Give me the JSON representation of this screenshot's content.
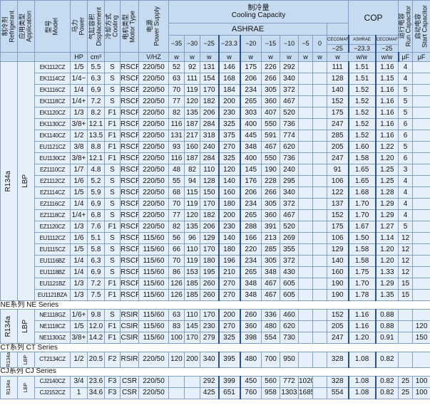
{
  "header": {
    "left": [
      {
        "zh": "制冷剂",
        "en": "Refrigerant"
      },
      {
        "zh": "应用类型",
        "en": "Application"
      },
      {
        "zh": "型号",
        "en": "Model"
      },
      {
        "zh": "马力",
        "en": "Power"
      },
      {
        "zh": "气缸容积",
        "en": "Displacement"
      },
      {
        "zh": "冷却方式",
        "en": "Cooling"
      },
      {
        "zh": "电机类型",
        "en": "Motor Type"
      },
      {
        "zh": "电源",
        "en": "Power Supply"
      }
    ],
    "capacity": {
      "zh": "制冷量",
      "en": "Cooling Capacity"
    },
    "cop": "COP",
    "run_capacitor": {
      "zh": "运行电容",
      "en": "Run Capacitor"
    },
    "start_capacitor": {
      "zh": "启动电容",
      "en": "Start Capacitor"
    },
    "ashrae": "ASHRAE",
    "temps": [
      "−35",
      "−30",
      "−25",
      "−23.3",
      "−20",
      "−15",
      "−10",
      "−5",
      "0"
    ],
    "sub_labels": [
      "CECOMAF",
      "ASHRAE",
      "CECOMAF"
    ],
    "sub_temps": [
      "−25",
      "−23.3",
      "−25"
    ],
    "units": [
      null,
      null,
      null,
      "HP",
      "cm³",
      null,
      null,
      "V/HZ",
      "w",
      "w",
      "w",
      "w",
      "w",
      "w",
      "w",
      "w",
      "w",
      "w",
      "w/w",
      "w/w",
      "μF",
      "μF"
    ]
  },
  "sections": [
    {
      "refrigerant": "R134a",
      "application": "LBP",
      "rows": [
        [
          "EK1112CZ",
          "1/5",
          "5.5",
          "S",
          "RSCR",
          "220/50",
          "52",
          "92",
          "131",
          "146",
          "175",
          "226",
          "292",
          null,
          null,
          "111",
          "1.51",
          "1.16",
          "4",
          null
        ],
        [
          "EK1114CZ",
          "1/4−",
          "6.3",
          "S",
          "RSCR",
          "220/50",
          "63",
          "111",
          "154",
          "168",
          "206",
          "266",
          "340",
          null,
          null,
          "128",
          "1.51",
          "1.15",
          "4",
          null
        ],
        [
          "EK1116CZ",
          "1/4",
          "6.9",
          "S",
          "RSCR",
          "220/50",
          "70",
          "119",
          "170",
          "184",
          "234",
          "305",
          "372",
          null,
          null,
          "140",
          "1.52",
          "1.16",
          "5",
          null
        ],
        [
          "EK1118CZ",
          "1/4+",
          "7.2",
          "S",
          "RSCR",
          "220/50",
          "77",
          "120",
          "182",
          "200",
          "265",
          "360",
          "467",
          null,
          null,
          "152",
          "1.52",
          "1.16",
          "5",
          null
        ],
        [
          "EK1120CZ",
          "1/3",
          "8.2",
          "F1",
          "RSCR",
          "220/50",
          "82",
          "135",
          "206",
          "230",
          "303",
          "407",
          "520",
          null,
          null,
          "175",
          "1.52",
          "1.16",
          "5",
          null
        ],
        [
          "EK1130CZ",
          "3/8+",
          "12.1",
          "F1",
          "RSCR",
          "220/50",
          "116",
          "187",
          "284",
          "325",
          "400",
          "550",
          "736",
          null,
          null,
          "247",
          "1.52",
          "1.16",
          "6",
          null
        ],
        [
          "EK1140CZ",
          "1/2",
          "13.5",
          "F1",
          "RSCR",
          "220/50",
          "131",
          "217",
          "318",
          "375",
          "445",
          "591",
          "774",
          null,
          null,
          "285",
          "1.52",
          "1.16",
          "6",
          null
        ],
        [
          "EU1121CZ",
          "3/8",
          "8.8",
          "F1",
          "RSCR",
          "220/50",
          "93",
          "160",
          "240",
          "270",
          "348",
          "467",
          "620",
          null,
          null,
          "205",
          "1.60",
          "1.22",
          "5",
          null
        ],
        [
          "EU1130CZ",
          "3/8+",
          "12.1",
          "F1",
          "RSCR",
          "220/50",
          "116",
          "187",
          "284",
          "325",
          "400",
          "550",
          "736",
          null,
          null,
          "247",
          "1.58",
          "1.20",
          "6",
          null
        ],
        [
          "EZ1110CZ",
          "1/7",
          "4.8",
          "S",
          "RSCR",
          "220/50",
          "48",
          "82",
          "110",
          "120",
          "145",
          "190",
          "240",
          null,
          null,
          "91",
          "1.65",
          "1.25",
          "3",
          null
        ],
        [
          "EZ1112CZ",
          "1/6",
          "5.2",
          "S",
          "RSCR",
          "220/50",
          "55",
          "94",
          "128",
          "140",
          "176",
          "228",
          "295",
          null,
          null,
          "106",
          "1.65",
          "1.25",
          "4",
          null
        ],
        [
          "EZ1114CZ",
          "1/5",
          "5.9",
          "S",
          "RSCR",
          "220/50",
          "68",
          "115",
          "150",
          "160",
          "206",
          "266",
          "340",
          null,
          null,
          "122",
          "1.68",
          "1.28",
          "4",
          null
        ],
        [
          "EZ1116CZ",
          "1/4",
          "6.9",
          "S",
          "RSCR",
          "220/50",
          "70",
          "119",
          "170",
          "180",
          "234",
          "305",
          "372",
          null,
          null,
          "137",
          "1.70",
          "1.29",
          "4",
          null
        ],
        [
          "EZ1118CZ",
          "1/4+",
          "6.8",
          "S",
          "RSCR",
          "220/50",
          "77",
          "120",
          "182",
          "200",
          "265",
          "360",
          "467",
          null,
          null,
          "152",
          "1.70",
          "1.29",
          "4",
          null
        ],
        [
          "EZ1120CZ",
          "1/3",
          "7.6",
          "F1",
          "RSCR",
          "220/50",
          "82",
          "135",
          "206",
          "230",
          "288",
          "391",
          "520",
          null,
          null,
          "175",
          "1.67",
          "1.27",
          "5",
          null
        ],
        [
          "EU1112CZ",
          "1/6",
          "5.1",
          "S",
          "RSCR",
          "115/60",
          "56",
          "96",
          "129",
          "140",
          "166",
          "213",
          "269",
          null,
          null,
          "106",
          "1.50",
          "1.14",
          "12",
          null
        ],
        [
          "EU1115CZ",
          "1/5",
          "5.8",
          "S",
          "RSCR",
          "115/60",
          "66",
          "110",
          "170",
          "180",
          "220",
          "285",
          "355",
          null,
          null,
          "129",
          "1.58",
          "1.20",
          "12",
          null
        ],
        [
          "EU1116BZ",
          "1/4",
          "6.3",
          "S",
          "RSCR",
          "115/60",
          "70",
          "119",
          "180",
          "196",
          "234",
          "305",
          "372",
          null,
          null,
          "140",
          "1.58",
          "1.20",
          "12",
          null
        ],
        [
          "EU1118BZ",
          "1/4",
          "6.9",
          "S",
          "RSCR",
          "115/60",
          "86",
          "153",
          "195",
          "210",
          "265",
          "348",
          "430",
          null,
          null,
          "160",
          "1.75",
          "1.33",
          "12",
          null
        ],
        [
          "EU1121BZ",
          "1/3",
          "7.2",
          "F1",
          "RSCR",
          "115/60",
          "126",
          "185",
          "260",
          "270",
          "348",
          "467",
          "605",
          null,
          null,
          "190",
          "1.70",
          "1.29",
          "15",
          null
        ],
        [
          "EU1121BZA",
          "1/3",
          "7.5",
          "F1",
          "RSCR",
          "115/60",
          "126",
          "185",
          "260",
          "270",
          "348",
          "467",
          "605",
          null,
          null,
          "190",
          "1.78",
          "1.35",
          "15",
          null
        ]
      ]
    },
    {
      "title": "NE系列 NE Series",
      "refrigerant": "R134a",
      "application": "LBP",
      "rows": [
        [
          "NE1118GZ",
          "1/6+",
          "9.8",
          "S",
          "RSIR",
          "115/60",
          "63",
          "110",
          "170",
          "200",
          "260",
          "336",
          "460",
          null,
          null,
          "152",
          "1.16",
          "0.88",
          null,
          null
        ],
        [
          "NE1118CZ",
          "1/5",
          "12.0",
          "F1",
          "CSIR",
          "115/60",
          "83",
          "145",
          "230",
          "270",
          "360",
          "480",
          "620",
          null,
          null,
          "205",
          "1.16",
          "0.88",
          null,
          "120"
        ],
        [
          "NE1130GZ",
          "3/8+",
          "14.2",
          "F1",
          "CSIR",
          "115/60",
          "100",
          "170",
          "279",
          "325",
          "398",
          "554",
          "730",
          null,
          null,
          "247",
          "1.20",
          "0.91",
          null,
          "150"
        ]
      ]
    },
    {
      "title": "CT系列 CT Series",
      "refrigerant": "R134a",
      "application": "LBP",
      "rows": [
        [
          "CT2134CZ",
          "1/2",
          "20.5",
          "F2",
          "RSIR",
          "220/50",
          "120",
          "200",
          "340",
          "395",
          "480",
          "700",
          "950",
          null,
          null,
          "328",
          "1.08",
          "0.82",
          null,
          null
        ]
      ]
    },
    {
      "title": "CJ系列 CJ Series",
      "refrigerant": "R134a",
      "application": "LBP",
      "rows": [
        [
          "CJ2140CZ",
          "3/4",
          "23.6",
          "F3",
          "CSR",
          "220/50",
          null,
          null,
          "292",
          "399",
          "450",
          "560",
          "772",
          "1020",
          null,
          "328",
          "1.08",
          "0.82",
          "25",
          "100"
        ],
        [
          "CJ2152CZ",
          "1",
          "34.6",
          "F3",
          "CSR",
          "220/50",
          null,
          null,
          "425",
          "651",
          "760",
          "958",
          "1303",
          "1685",
          null,
          "554",
          "1.08",
          "0.82",
          "25",
          "100"
        ]
      ]
    }
  ]
}
